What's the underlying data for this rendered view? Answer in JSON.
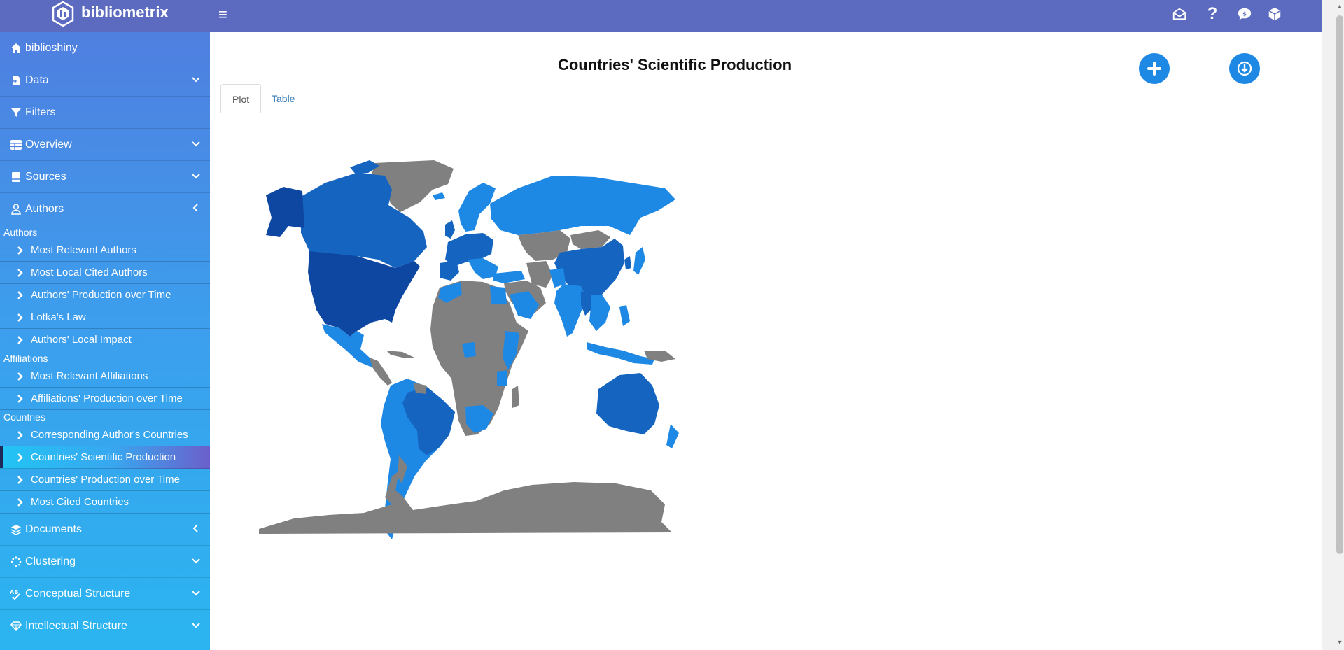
{
  "app": {
    "name": "bibliometrix"
  },
  "topbar": {
    "icons": [
      "mail-open-icon",
      "help-icon",
      "chat-bubble-icon",
      "box-icon"
    ]
  },
  "sidebar": {
    "home": "biblioshiny",
    "data": "Data",
    "filters": "Filters",
    "overview": "Overview",
    "sources": "Sources",
    "authors": "Authors",
    "authors_header": "Authors",
    "authors_items": [
      "Most Relevant Authors",
      "Most Local Cited Authors",
      "Authors' Production over Time",
      "Lotka's Law",
      "Authors' Local Impact"
    ],
    "affiliations_header": "Affiliations",
    "affiliations_items": [
      "Most Relevant Affiliations",
      "Affiliations' Production over Time"
    ],
    "countries_header": "Countries",
    "countries_items": [
      "Corresponding Author's Countries",
      "Countries' Scientific Production",
      "Countries' Production over Time",
      "Most Cited Countries"
    ],
    "documents": "Documents",
    "clustering": "Clustering",
    "conceptual": "Conceptual Structure",
    "intellectual": "Intellectual Structure"
  },
  "main": {
    "title": "Countries' Scientific Production",
    "tabs": [
      "Plot",
      "Table"
    ],
    "active_tab": "Plot",
    "buttons": [
      "add-icon",
      "download-icon"
    ]
  },
  "colors": {
    "topbar": "#5c6bc0",
    "accent": "#1e88e5",
    "map_none": "#808080",
    "map_low": "#1e88e5",
    "map_mid": "#1565c0",
    "map_high": "#0d47a1"
  }
}
